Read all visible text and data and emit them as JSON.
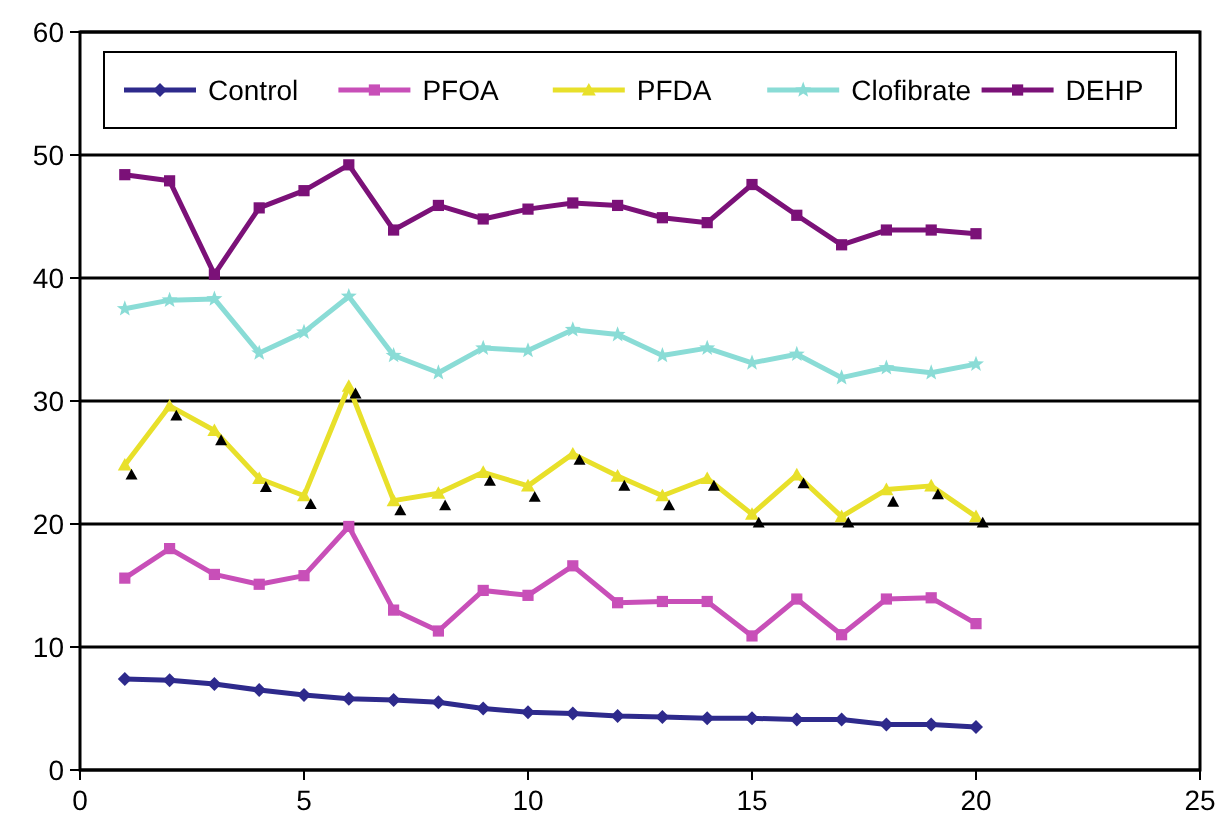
{
  "chart_data": {
    "type": "line",
    "x": [
      1,
      2,
      3,
      4,
      5,
      6,
      7,
      8,
      9,
      10,
      11,
      12,
      13,
      14,
      15,
      16,
      17,
      18,
      19,
      20
    ],
    "series": [
      {
        "name": "Control",
        "color": "#2e2a8c",
        "marker": "diamond",
        "values": [
          7.4,
          7.3,
          7.0,
          6.5,
          6.1,
          5.8,
          5.7,
          5.5,
          5.0,
          4.7,
          4.6,
          4.4,
          4.3,
          4.2,
          4.2,
          4.1,
          4.1,
          3.7,
          3.7,
          3.5
        ]
      },
      {
        "name": "PFOA",
        "color": "#c84fb8",
        "marker": "square",
        "values": [
          15.6,
          18.0,
          15.9,
          15.1,
          15.8,
          19.8,
          13.0,
          11.3,
          14.6,
          14.2,
          16.6,
          13.6,
          13.7,
          13.7,
          10.9,
          13.9,
          11.0,
          13.9,
          14.0,
          11.9
        ]
      },
      {
        "name": "PFDA",
        "color": "#e8e02a",
        "marker": "triangle",
        "values": [
          24.8,
          29.6,
          27.6,
          23.7,
          22.3,
          31.2,
          21.9,
          22.5,
          24.2,
          23.1,
          25.7,
          23.9,
          22.3,
          23.7,
          20.8,
          24.0,
          20.6,
          22.8,
          23.1,
          20.6
        ]
      },
      {
        "name": "Clofibrate",
        "color": "#8adcd6",
        "marker": "star",
        "values": [
          37.5,
          38.2,
          38.3,
          33.9,
          35.6,
          38.5,
          33.7,
          32.3,
          34.3,
          34.1,
          35.8,
          35.4,
          33.7,
          34.3,
          33.1,
          33.8,
          31.9,
          32.7,
          32.3,
          33.0
        ]
      },
      {
        "name": "DEHP",
        "color": "#7b1178",
        "marker": "square",
        "values": [
          48.4,
          47.9,
          40.3,
          45.7,
          47.1,
          49.2,
          43.9,
          45.9,
          44.8,
          45.6,
          46.1,
          45.9,
          44.9,
          44.5,
          47.6,
          45.1,
          42.7,
          43.9,
          43.9,
          43.6
        ]
      },
      {
        "type": "scatter",
        "color": "#000000",
        "marker": "triangle",
        "x": [
          1.15,
          2.15,
          3.15,
          4.15,
          5.15,
          6.15,
          7.15,
          8.15,
          9.15,
          10.15,
          11.15,
          12.15,
          13.15,
          14.15,
          15.15,
          16.15,
          17.15,
          18.15,
          19.15,
          20.15
        ],
        "values": [
          24.0,
          28.8,
          26.8,
          23.0,
          21.6,
          30.6,
          21.1,
          21.5,
          23.5,
          22.2,
          25.2,
          23.1,
          21.5,
          23.1,
          20.1,
          23.3,
          20.1,
          21.8,
          22.4,
          20.1
        ]
      }
    ],
    "xlim": [
      0,
      25
    ],
    "xticks": [
      0,
      5,
      10,
      15,
      20,
      25
    ],
    "ylim": [
      0,
      60
    ],
    "yticks": [
      0,
      10,
      20,
      30,
      40,
      50,
      60
    ],
    "grid": "y",
    "legend": "top"
  }
}
